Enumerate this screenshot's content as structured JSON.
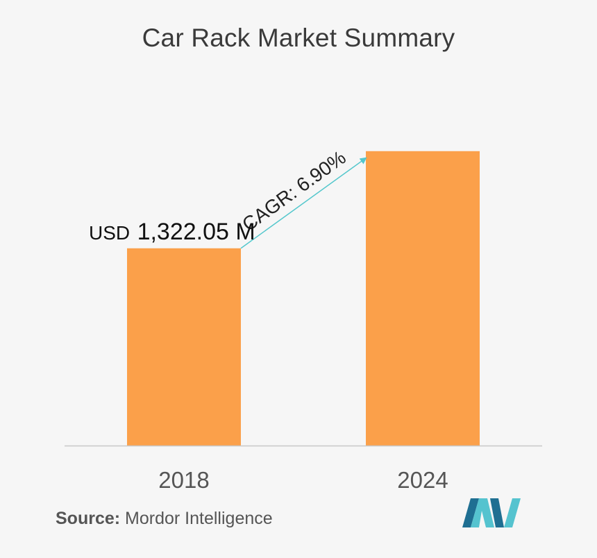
{
  "chart_data": {
    "type": "bar",
    "title": "Car Rack Market Summary",
    "categories": [
      "2018",
      "2024"
    ],
    "values": [
      1322.05,
      1973.0
    ],
    "ylim": [
      0,
      2000
    ],
    "grid": false,
    "value_label": {
      "category": "2018",
      "prefix": "USD",
      "text": "1,322.05 M"
    },
    "annotation": {
      "text": "CAGR: 6.90%",
      "from": "2018",
      "to": "2024"
    }
  },
  "source": {
    "label": "Source:",
    "text": "Mordor Intelligence"
  },
  "colors": {
    "bar": "#fba04a",
    "arrow": "#53c7cc",
    "axis": "#c8c8c8",
    "background": "#f6f6f6",
    "logo_dark": "#1f6f92",
    "logo_light": "#55c3cf"
  },
  "logo": {
    "icon": "mordor-intelligence-logo"
  }
}
